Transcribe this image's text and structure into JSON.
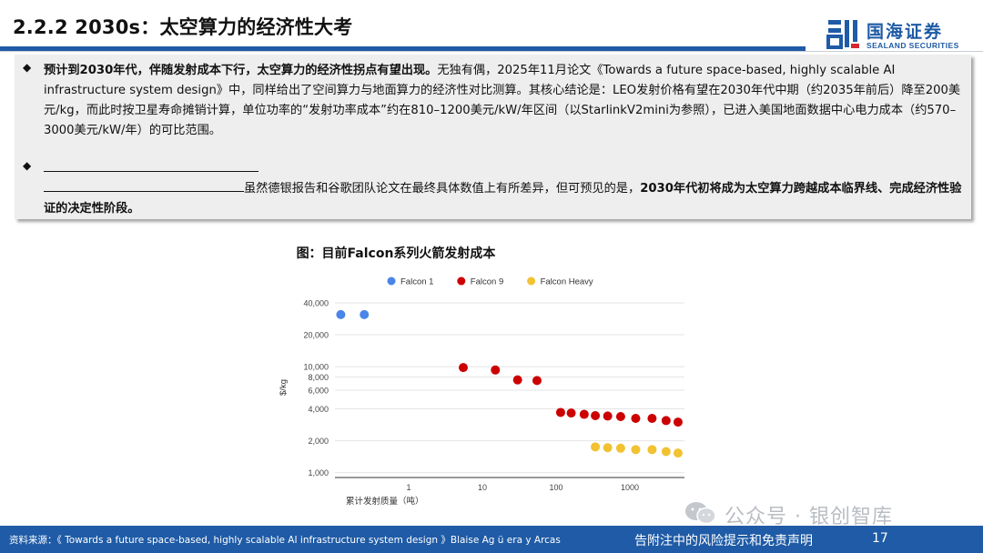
{
  "header": {
    "title": "2.2.2 2030s：太空算力的经济性大考",
    "logo_name": "国海证券",
    "logo_sub": "SEALAND SECURITIES"
  },
  "content": {
    "para1_bold": "预计到2030年代，伴随发射成本下行，太空算力的经济性拐点有望出现。",
    "para1_rest": "无独有偶，2025年11月论文《Towards a future space-based, highly scalable AI infrastructure system design》中，同样给出了空间算力与地面算力的经济性对比测算。其核心结论是：LEO发射价格有望在2030年代中期（约2035年前后）降至200美元/kg，而此时按卫星寿命摊销计算，单位功率的“发射功率成本”约在810–1200美元/kW/年区间（以StarlinkV2mini为参照），已进入美国地面数据中心电力成本（约570–3000美元/kW/年）的可比范围。",
    "para2_rest": "虽然德银报告和谷歌团队论文在最终具体数值上有所差异，但可预见的是，",
    "para2_bold": "2030年代初将成为太空算力跨越成本临界线、完成经济性验证的决定性阶段。"
  },
  "figure": {
    "title": "图：目前Falcon系列火箭发射成本"
  },
  "chart_data": {
    "type": "scatter",
    "x_scale": "log",
    "y_scale": "log",
    "xlabel": "累计发射质量（吨）",
    "ylabel": "$/kg",
    "xlim": [
      0.1,
      5500
    ],
    "ylim": [
      900,
      45000
    ],
    "x_ticks": [
      "1",
      "10",
      "100",
      "1000"
    ],
    "y_ticks": [
      "1,000",
      "2,000",
      "4,000",
      "6,000",
      "8,000",
      "10,000",
      "20,000",
      "40,000"
    ],
    "legend_position": "top",
    "grid": "horizontal",
    "series": [
      {
        "name": "Falcon 1",
        "color": "#4a86e8",
        "points": [
          [
            0.12,
            31000
          ],
          [
            0.25,
            31000
          ]
        ]
      },
      {
        "name": "Falcon 9",
        "color": "#cc0000",
        "points": [
          [
            5.5,
            9800
          ],
          [
            15,
            9300
          ],
          [
            30,
            7500
          ],
          [
            55,
            7400
          ],
          [
            115,
            3700
          ],
          [
            160,
            3650
          ],
          [
            240,
            3550
          ],
          [
            340,
            3450
          ],
          [
            500,
            3420
          ],
          [
            750,
            3380
          ],
          [
            1200,
            3250
          ],
          [
            2000,
            3250
          ],
          [
            3100,
            3100
          ],
          [
            4500,
            3000
          ]
        ]
      },
      {
        "name": "Falcon Heavy",
        "color": "#f1c232",
        "points": [
          [
            340,
            1750
          ],
          [
            500,
            1720
          ],
          [
            750,
            1700
          ],
          [
            1200,
            1650
          ],
          [
            2000,
            1650
          ],
          [
            3100,
            1580
          ],
          [
            4500,
            1530
          ]
        ]
      }
    ]
  },
  "watermark": {
    "text": "公众号 · 银创智库"
  },
  "footer": {
    "source": "资料来源：《 Towards a future space-based, highly scalable AI infrastructure system design 》Blaise Ag ü era y Arcas",
    "disclaimer": "告附注中的风险提示和免责声明",
    "page": "17"
  }
}
